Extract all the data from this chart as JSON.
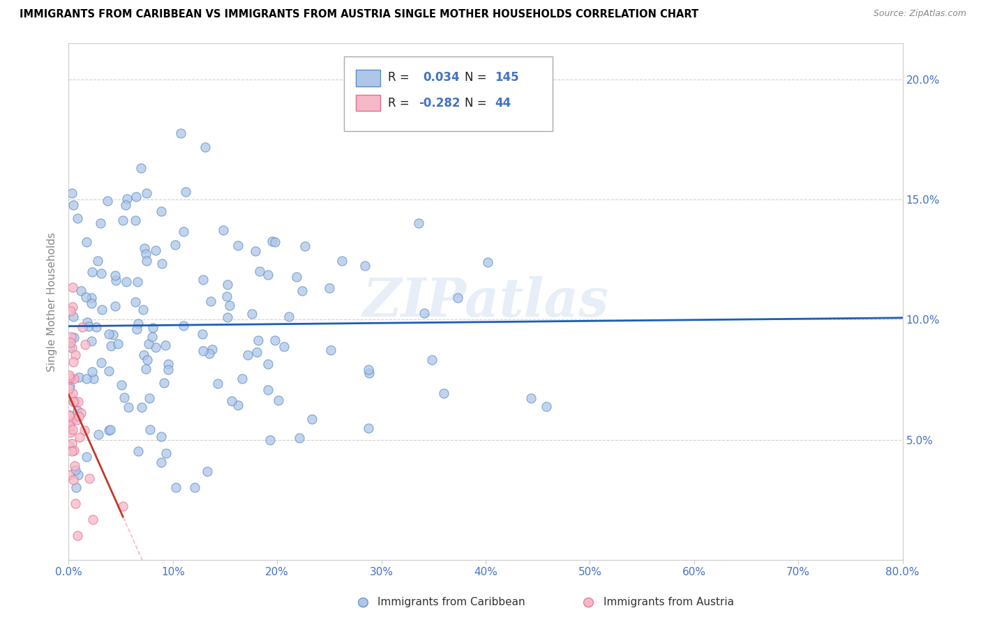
{
  "title": "IMMIGRANTS FROM CARIBBEAN VS IMMIGRANTS FROM AUSTRIA SINGLE MOTHER HOUSEHOLDS CORRELATION CHART",
  "source": "Source: ZipAtlas.com",
  "ylabel": "Single Mother Households",
  "legend_label1": "Immigrants from Caribbean",
  "legend_label2": "Immigrants from Austria",
  "R1": 0.034,
  "N1": 145,
  "R2": -0.282,
  "N2": 44,
  "color1_fill": "#aec6e8",
  "color1_edge": "#5b8ec4",
  "color2_fill": "#f7b8c8",
  "color2_edge": "#e07090",
  "trendline1_color": "#1a5eb8",
  "trendline2_solid_color": "#c0392b",
  "trendline2_dash_color": "#f4b8c8",
  "watermark": "ZIPatlas",
  "xlim": [
    0.0,
    0.8
  ],
  "ylim": [
    0.0,
    0.215
  ],
  "xticks": [
    0.0,
    0.1,
    0.2,
    0.3,
    0.4,
    0.5,
    0.6,
    0.7,
    0.8
  ],
  "yticks": [
    0.0,
    0.05,
    0.1,
    0.15,
    0.2
  ],
  "ytick_labels": [
    "",
    "5.0%",
    "10.0%",
    "15.0%",
    "20.0%"
  ],
  "xtick_labels": [
    "0.0%",
    "10%",
    "20%",
    "30%",
    "40%",
    "50%",
    "60%",
    "70%",
    "80.0%"
  ]
}
